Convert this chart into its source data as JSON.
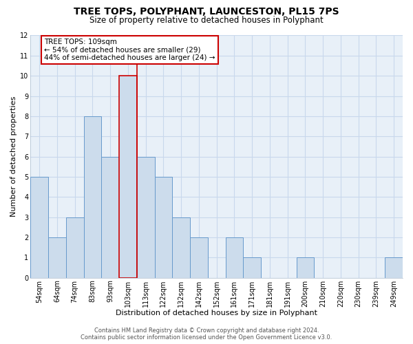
{
  "title": "TREE TOPS, POLYPHANT, LAUNCESTON, PL15 7PS",
  "subtitle": "Size of property relative to detached houses in Polyphant",
  "xlabel": "Distribution of detached houses by size in Polyphant",
  "ylabel": "Number of detached properties",
  "bar_labels": [
    "54sqm",
    "64sqm",
    "74sqm",
    "83sqm",
    "93sqm",
    "103sqm",
    "113sqm",
    "122sqm",
    "132sqm",
    "142sqm",
    "152sqm",
    "161sqm",
    "171sqm",
    "181sqm",
    "191sqm",
    "200sqm",
    "210sqm",
    "220sqm",
    "230sqm",
    "239sqm",
    "249sqm"
  ],
  "bar_values": [
    5,
    2,
    3,
    8,
    6,
    10,
    6,
    5,
    3,
    2,
    0,
    2,
    1,
    0,
    0,
    1,
    0,
    0,
    0,
    0,
    1
  ],
  "bar_color": "#ccdcec",
  "bar_edge_color": "#6699cc",
  "highlight_bar_index": 5,
  "highlight_bar_color": "#ccdcec",
  "highlight_bar_edge_color": "#cc0000",
  "highlight_line_color": "#cc0000",
  "annotation_title": "TREE TOPS: 109sqm",
  "annotation_line1": "← 54% of detached houses are smaller (29)",
  "annotation_line2": "44% of semi-detached houses are larger (24) →",
  "annotation_box_color": "#ffffff",
  "annotation_box_edge_color": "#cc0000",
  "ylim": [
    0,
    12
  ],
  "yticks": [
    0,
    1,
    2,
    3,
    4,
    5,
    6,
    7,
    8,
    9,
    10,
    11,
    12
  ],
  "grid_color": "#c8d8ec",
  "background_color": "#ffffff",
  "plot_bg_color": "#e8f0f8",
  "footer_line1": "Contains HM Land Registry data © Crown copyright and database right 2024.",
  "footer_line2": "Contains public sector information licensed under the Open Government Licence v3.0.",
  "title_fontsize": 10,
  "subtitle_fontsize": 8.5,
  "axis_label_fontsize": 8,
  "tick_fontsize": 7,
  "annotation_fontsize": 7.5,
  "footer_fontsize": 6
}
